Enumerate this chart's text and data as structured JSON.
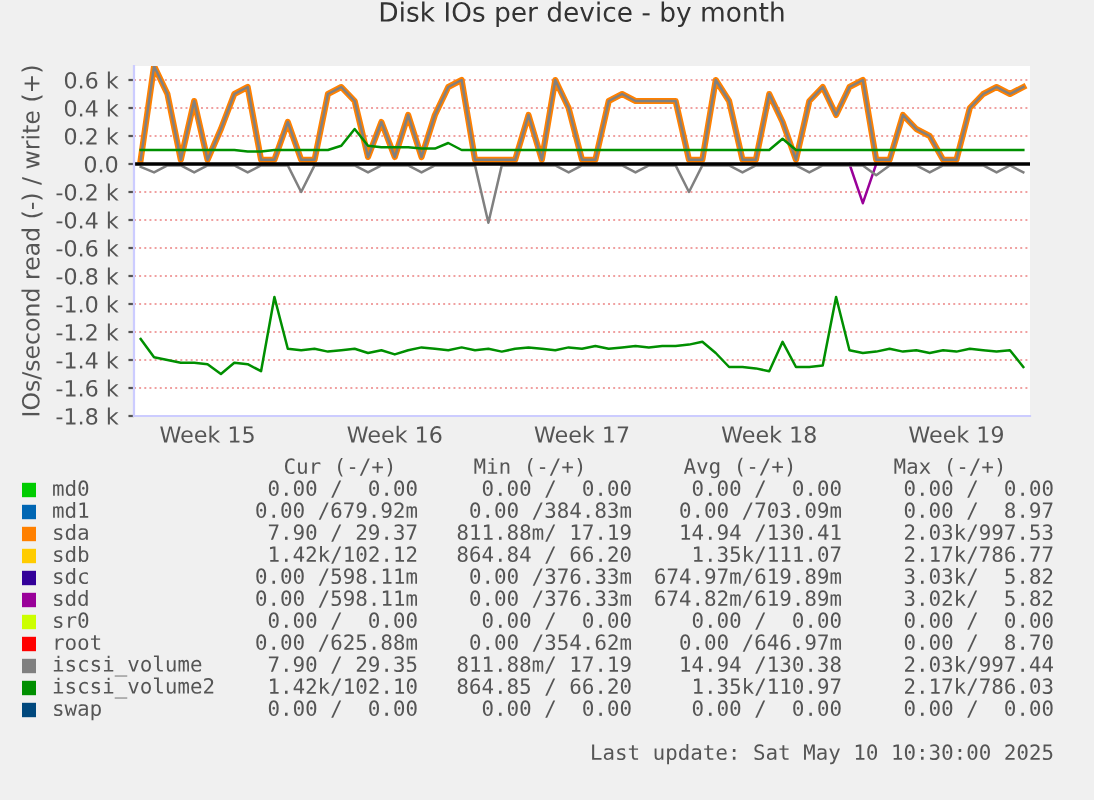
{
  "chart_data": {
    "type": "line",
    "title": "Disk IOs per device - by month",
    "ylabel": "IOs/second read (-) / write (+)",
    "categories": [
      null,
      null,
      null,
      null,
      null,
      "Week 15",
      null,
      null,
      null,
      null,
      null,
      null,
      null,
      null,
      null,
      null,
      null,
      null,
      null,
      "Week 16",
      null,
      null,
      null,
      null,
      null,
      null,
      null,
      null,
      null,
      null,
      null,
      null,
      null,
      "Week 17",
      null,
      null,
      null,
      null,
      null,
      null,
      null,
      null,
      null,
      null,
      null,
      null,
      null,
      "Week 18",
      null,
      null,
      null,
      null,
      null,
      null,
      null,
      null,
      null,
      null,
      null,
      null,
      null,
      "Week 19",
      null,
      null,
      null,
      null,
      null
    ],
    "ylim": [
      -1800,
      700
    ],
    "yticks": [
      {
        "value": -1800,
        "label": "-1.8 k"
      },
      {
        "value": -1600,
        "label": "-1.6 k"
      },
      {
        "value": -1400,
        "label": "-1.4 k"
      },
      {
        "value": -1200,
        "label": "-1.2 k"
      },
      {
        "value": -1000,
        "label": "-1.0 k"
      },
      {
        "value": -800,
        "label": "-0.8 k"
      },
      {
        "value": -600,
        "label": "-0.6 k"
      },
      {
        "value": -400,
        "label": "-0.4 k"
      },
      {
        "value": -200,
        "label": "-0.2 k"
      },
      {
        "value": 0,
        "label": "0.0"
      },
      {
        "value": 200,
        "label": "0.2 k"
      },
      {
        "value": 400,
        "label": "0.4 k"
      },
      {
        "value": 600,
        "label": "0.6 k"
      }
    ],
    "grid": "y",
    "legend": "bottom",
    "ref_lines": [
      {
        "axis": "y",
        "value": 0,
        "color": "#000000"
      }
    ],
    "series": [
      {
        "name": "md0",
        "color": "#00cc00",
        "values": [
          null,
          null,
          null,
          null,
          null,
          null,
          null,
          null,
          null,
          null,
          null,
          null,
          null,
          null,
          null,
          null,
          null,
          null,
          null,
          null,
          null,
          null,
          null,
          null,
          null,
          null,
          null,
          null,
          null,
          null,
          null,
          null,
          null,
          null,
          null,
          null,
          null,
          null,
          null,
          null,
          null,
          null,
          null,
          null,
          null,
          null,
          null,
          null,
          null,
          null,
          null,
          null,
          null,
          null,
          null,
          null,
          null,
          null,
          null,
          null,
          null,
          null,
          null,
          null,
          null,
          null,
          null
        ]
      },
      {
        "name": "md1",
        "color": "#0066b3",
        "values": [
          null,
          null,
          null,
          null,
          null,
          null,
          null,
          null,
          null,
          null,
          null,
          null,
          null,
          null,
          null,
          null,
          null,
          null,
          null,
          null,
          null,
          null,
          null,
          null,
          null,
          null,
          null,
          null,
          null,
          null,
          null,
          null,
          null,
          null,
          null,
          null,
          null,
          null,
          null,
          null,
          null,
          null,
          null,
          null,
          null,
          null,
          null,
          null,
          null,
          null,
          null,
          null,
          null,
          null,
          null,
          null,
          null,
          null,
          null,
          null,
          null,
          null,
          null,
          null,
          null,
          null,
          null
        ]
      },
      {
        "name": "sda",
        "color": "#ff8000",
        "values": [
          30,
          700,
          500,
          30,
          450,
          30,
          250,
          500,
          550,
          30,
          30,
          300,
          30,
          30,
          500,
          550,
          450,
          50,
          300,
          50,
          350,
          50,
          350,
          550,
          600,
          30,
          30,
          30,
          30,
          350,
          30,
          600,
          400,
          30,
          30,
          450,
          500,
          450,
          450,
          450,
          450,
          30,
          30,
          600,
          450,
          30,
          30,
          500,
          300,
          30,
          450,
          550,
          350,
          550,
          600,
          30,
          30,
          350,
          250,
          200,
          30,
          30,
          400,
          500,
          550,
          500,
          550
        ]
      },
      {
        "name": "sdb",
        "color": "#ffcc00",
        "values": [
          null,
          null,
          null,
          null,
          null,
          null,
          null,
          null,
          null,
          null,
          null,
          null,
          null,
          null,
          null,
          null,
          null,
          null,
          null,
          null,
          null,
          null,
          null,
          null,
          null,
          null,
          null,
          null,
          null,
          null,
          null,
          null,
          null,
          null,
          null,
          null,
          null,
          null,
          null,
          null,
          null,
          null,
          null,
          null,
          null,
          null,
          null,
          null,
          null,
          null,
          null,
          null,
          null,
          null,
          null,
          null,
          null,
          null,
          null,
          null,
          null,
          null,
          null,
          null,
          null,
          null,
          null
        ]
      },
      {
        "name": "sdc",
        "color": "#330099",
        "values": [
          null,
          null,
          null,
          null,
          null,
          null,
          null,
          null,
          null,
          null,
          null,
          null,
          null,
          null,
          null,
          null,
          null,
          null,
          null,
          null,
          null,
          null,
          null,
          null,
          null,
          null,
          null,
          null,
          null,
          null,
          null,
          null,
          null,
          null,
          null,
          null,
          null,
          null,
          null,
          null,
          null,
          null,
          null,
          null,
          null,
          null,
          null,
          null,
          null,
          null,
          null,
          null,
          null,
          null,
          null,
          null,
          null,
          null,
          null,
          null,
          null,
          null,
          null,
          null,
          null,
          null,
          null
        ]
      },
      {
        "name": "sdd",
        "color": "#990099",
        "values": [
          null,
          null,
          null,
          null,
          null,
          null,
          null,
          null,
          null,
          null,
          null,
          null,
          null,
          null,
          null,
          null,
          null,
          null,
          null,
          null,
          null,
          null,
          null,
          null,
          null,
          null,
          null,
          null,
          null,
          null,
          null,
          null,
          null,
          null,
          null,
          null,
          null,
          null,
          null,
          null,
          null,
          null,
          null,
          null,
          null,
          null,
          null,
          null,
          null,
          null,
          null,
          null,
          null,
          0,
          -280,
          0,
          null,
          null,
          null,
          null,
          null,
          null,
          null,
          null,
          null,
          null,
          null
        ]
      },
      {
        "name": "sr0",
        "color": "#ccff00",
        "values": [
          null,
          null,
          null,
          null,
          null,
          null,
          null,
          null,
          null,
          null,
          null,
          null,
          null,
          null,
          null,
          null,
          null,
          null,
          null,
          null,
          null,
          null,
          null,
          null,
          null,
          null,
          null,
          null,
          null,
          null,
          null,
          null,
          null,
          null,
          null,
          null,
          null,
          null,
          null,
          null,
          null,
          null,
          null,
          null,
          null,
          null,
          null,
          null,
          null,
          null,
          null,
          null,
          null,
          null,
          null,
          null,
          null,
          null,
          null,
          null,
          null,
          null,
          null,
          null,
          null,
          null,
          null
        ]
      },
      {
        "name": "root",
        "color": "#ff0000",
        "values": [
          null,
          null,
          null,
          null,
          null,
          null,
          null,
          null,
          null,
          null,
          null,
          null,
          null,
          null,
          null,
          null,
          null,
          null,
          null,
          null,
          null,
          null,
          null,
          null,
          null,
          null,
          null,
          null,
          null,
          null,
          null,
          null,
          null,
          null,
          null,
          null,
          null,
          null,
          null,
          null,
          null,
          null,
          null,
          null,
          null,
          null,
          null,
          null,
          null,
          null,
          null,
          null,
          null,
          null,
          null,
          null,
          null,
          null,
          null,
          null,
          null,
          null,
          null,
          null,
          null,
          null,
          null
        ]
      },
      {
        "name": "iscsi_volume",
        "color": "#808080",
        "values": [
          30,
          700,
          500,
          30,
          450,
          30,
          250,
          500,
          550,
          30,
          30,
          300,
          30,
          30,
          500,
          550,
          450,
          50,
          300,
          50,
          350,
          50,
          350,
          550,
          600,
          30,
          30,
          30,
          30,
          350,
          30,
          600,
          400,
          30,
          30,
          450,
          500,
          450,
          450,
          450,
          450,
          30,
          30,
          600,
          450,
          30,
          30,
          500,
          300,
          30,
          450,
          550,
          350,
          550,
          600,
          30,
          30,
          350,
          250,
          200,
          30,
          30,
          400,
          500,
          550,
          500,
          550
        ]
      },
      {
        "name": "iscsi_volume2",
        "color": "#008f00",
        "values": [
          100,
          100,
          100,
          100,
          100,
          100,
          100,
          100,
          90,
          90,
          100,
          100,
          100,
          100,
          100,
          130,
          250,
          130,
          120,
          120,
          120,
          110,
          110,
          150,
          100,
          100,
          100,
          100,
          100,
          100,
          100,
          100,
          100,
          100,
          100,
          100,
          100,
          100,
          100,
          100,
          100,
          100,
          100,
          100,
          100,
          100,
          100,
          100,
          180,
          100,
          100,
          100,
          100,
          100,
          100,
          100,
          100,
          100,
          100,
          100,
          100,
          100,
          100,
          100,
          100,
          100,
          100
        ]
      },
      {
        "name": "swap",
        "color": "#00487d",
        "values": [
          null,
          null,
          null,
          null,
          null,
          null,
          null,
          null,
          null,
          null,
          null,
          null,
          null,
          null,
          null,
          null,
          null,
          null,
          null,
          null,
          null,
          null,
          null,
          null,
          null,
          null,
          null,
          null,
          null,
          null,
          null,
          null,
          null,
          null,
          null,
          null,
          null,
          null,
          null,
          null,
          null,
          null,
          null,
          null,
          null,
          null,
          null,
          null,
          null,
          null,
          null,
          null,
          null,
          null,
          null,
          null,
          null,
          null,
          null,
          null,
          null,
          null,
          null,
          null,
          null,
          null,
          null
        ]
      },
      {
        "color": "#808080",
        "values": [
          -20,
          -60,
          -10,
          -10,
          -60,
          -10,
          -10,
          -10,
          -60,
          -10,
          -10,
          -10,
          -200,
          -10,
          -10,
          -10,
          -10,
          -60,
          -10,
          -10,
          -10,
          -60,
          -10,
          -10,
          -10,
          -10,
          -420,
          -10,
          -10,
          -10,
          -10,
          -10,
          -60,
          -10,
          -10,
          -10,
          -10,
          -60,
          -10,
          -10,
          -10,
          -200,
          -10,
          -10,
          -10,
          -60,
          -10,
          -10,
          -10,
          -10,
          -60,
          -10,
          -10,
          -10,
          -10,
          -80,
          -10,
          -10,
          -10,
          -60,
          -10,
          -10,
          -10,
          -10,
          -60,
          -10,
          -60
        ]
      },
      {
        "color": "#008f00",
        "values": [
          -1250,
          -1380,
          -1400,
          -1420,
          -1420,
          -1430,
          -1500,
          -1420,
          -1430,
          -1480,
          -950,
          -1320,
          -1330,
          -1320,
          -1340,
          -1330,
          -1320,
          -1350,
          -1330,
          -1360,
          -1330,
          -1310,
          -1320,
          -1330,
          -1310,
          -1330,
          -1320,
          -1340,
          -1320,
          -1310,
          -1320,
          -1330,
          -1310,
          -1320,
          -1300,
          -1320,
          -1310,
          -1300,
          -1310,
          -1300,
          -1300,
          -1290,
          -1270,
          -1350,
          -1450,
          -1450,
          -1460,
          -1480,
          -1270,
          -1450,
          -1450,
          -1440,
          -950,
          -1330,
          -1350,
          -1340,
          -1320,
          -1340,
          -1330,
          -1350,
          -1330,
          -1340,
          -1320,
          -1330,
          -1340,
          -1330,
          -1450
        ]
      }
    ],
    "annotations": [
      "Cur (-/+)",
      "Min (-/+)",
      "Avg (-/+)",
      "Max (-/+)",
      "0.00 /  0.00",
      "0.00 /  0.00",
      "0.00 /  0.00",
      "0.00 /  0.00",
      "0.00 /679.92m",
      "0.00 /384.83m",
      "0.00 /703.09m",
      "0.00 /  8.97",
      "7.90 / 29.37",
      "811.88m/ 17.19",
      "14.94 /130.41",
      "2.03k/997.53",
      "1.42k/102.12",
      "864.84 / 66.20",
      "1.35k/111.07",
      "2.17k/786.77",
      "0.00 /598.11m",
      "0.00 /376.33m",
      "674.97m/619.89m",
      "3.03k/  5.82",
      "0.00 /598.11m",
      "0.00 /376.33m",
      "674.82m/619.89m",
      "3.02k/  5.82",
      "0.00 /  0.00",
      "0.00 /  0.00",
      "0.00 /  0.00",
      "0.00 /  0.00",
      "0.00 /625.88m",
      "0.00 /354.62m",
      "0.00 /646.97m",
      "0.00 /  8.70",
      "7.90 / 29.35",
      "811.88m/ 17.19",
      "14.94 /130.38",
      "2.03k/997.44",
      "1.42k/102.10",
      "864.85 / 66.20",
      "1.35k/110.97",
      "2.17k/786.03",
      "0.00 /  0.00",
      "0.00 /  0.00",
      "0.00 /  0.00",
      "0.00 /  0.00",
      "Last update: Sat May 10 10:30:00 2025"
    ]
  }
}
